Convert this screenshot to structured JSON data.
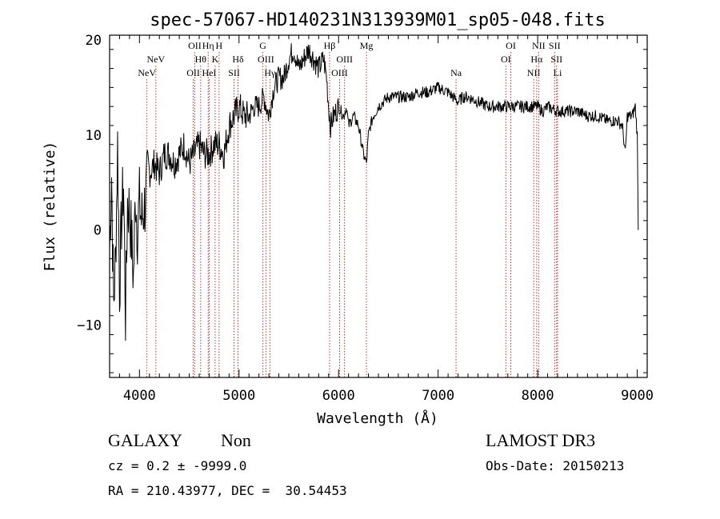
{
  "chart_data": {
    "type": "line",
    "title": "spec-57067-HD140231N313939M01_sp05-048.fits",
    "xlabel": "Wavelength (Å)",
    "ylabel": "Flux (relative)",
    "xlim": [
      3700,
      9100
    ],
    "ylim": [
      -15.5,
      20.5
    ],
    "xticks": [
      4000,
      5000,
      6000,
      7000,
      8000,
      9000
    ],
    "yticks": [
      -10,
      0,
      10,
      20
    ],
    "grid": false,
    "series": [
      {
        "x": [
          3700,
          3720,
          3740,
          3760,
          3780,
          3800,
          3820,
          3840,
          3860,
          3880,
          3900,
          3920,
          3940,
          3960,
          3980,
          4000,
          4020,
          4040,
          4060,
          4080,
          4100,
          4150,
          4200,
          4250,
          4300,
          4350,
          4400,
          4450,
          4500,
          4550,
          4600,
          4650,
          4700,
          4750,
          4800,
          4850,
          4900,
          4950,
          5000,
          5050,
          5100,
          5150,
          5200,
          5250,
          5300,
          5350,
          5400,
          5450,
          5500,
          5550,
          5600,
          5650,
          5700,
          5750,
          5800,
          5850,
          5880,
          5900,
          5920,
          5950,
          6000,
          6050,
          6080,
          6100,
          6150,
          6200,
          6250,
          6280,
          6300,
          6320,
          6350,
          6400,
          6450,
          6500,
          6550,
          6600,
          6700,
          6800,
          6900,
          7000,
          7100,
          7150,
          7200,
          7250,
          7300,
          7400,
          7500,
          7600,
          7700,
          7800,
          7900,
          8000,
          8050,
          8100,
          8200,
          8300,
          8400,
          8500,
          8600,
          8700,
          8800,
          8850,
          8880,
          8900,
          8950,
          8980,
          9000,
          9010
        ],
        "values": [
          -2,
          6,
          -8,
          -3,
          9,
          -6,
          1,
          5,
          -9,
          3,
          2,
          -1,
          -5,
          4,
          0,
          3,
          1,
          2,
          3,
          5,
          6,
          7,
          6,
          8,
          8,
          7,
          8,
          9,
          7,
          8,
          9,
          8,
          8,
          9,
          9,
          8,
          11,
          12,
          13,
          12,
          12,
          13,
          13,
          14,
          12,
          15,
          16,
          16,
          18,
          19,
          17,
          18,
          19,
          18,
          17,
          18,
          16,
          13,
          11,
          12,
          13,
          12,
          13,
          11,
          12,
          11,
          8,
          7,
          10,
          11,
          12,
          13,
          13.5,
          14,
          14,
          14,
          14,
          14.5,
          14.5,
          15,
          14.5,
          14,
          13.5,
          14,
          14,
          13.5,
          13,
          13,
          13,
          13,
          13,
          13,
          12.5,
          13,
          12.5,
          12.5,
          12.5,
          12,
          12,
          11.5,
          11.5,
          11,
          8,
          12,
          12,
          13,
          10,
          0
        ]
      }
    ],
    "line_markers": [
      {
        "name": "NeV",
        "wavelength": 4075,
        "row": 3
      },
      {
        "name": "NeV",
        "wavelength": 4165,
        "row": 2
      },
      {
        "name": "OII",
        "wavelength": 4540,
        "row": 3
      },
      {
        "name": "OII",
        "wavelength": 4555,
        "row": 1
      },
      {
        "name": "Hθ",
        "wavelength": 4615,
        "row": 2
      },
      {
        "name": "Hη",
        "wavelength": 4690,
        "row": 1
      },
      {
        "name": "HeI",
        "wavelength": 4700,
        "row": 3
      },
      {
        "name": "K",
        "wavelength": 4760,
        "row": 2
      },
      {
        "name": "H",
        "wavelength": 4800,
        "row": 1
      },
      {
        "name": "SII",
        "wavelength": 4950,
        "row": 3
      },
      {
        "name": "Hδ",
        "wavelength": 4990,
        "row": 2
      },
      {
        "name": "G",
        "wavelength": 5240,
        "row": 1
      },
      {
        "name": "OIII",
        "wavelength": 5270,
        "row": 2
      },
      {
        "name": "Hγ",
        "wavelength": 5310,
        "row": 3
      },
      {
        "name": "Hβ",
        "wavelength": 5910,
        "row": 1
      },
      {
        "name": "OIII",
        "wavelength": 6010,
        "row": 3
      },
      {
        "name": "OIII",
        "wavelength": 6060,
        "row": 2
      },
      {
        "name": "Mg",
        "wavelength": 6280,
        "row": 1
      },
      {
        "name": "Na",
        "wavelength": 7180,
        "row": 3
      },
      {
        "name": "OI",
        "wavelength": 7680,
        "row": 2
      },
      {
        "name": "OI",
        "wavelength": 7730,
        "row": 1
      },
      {
        "name": "NII",
        "wavelength": 7960,
        "row": 3
      },
      {
        "name": "Hα",
        "wavelength": 7990,
        "row": 2
      },
      {
        "name": "NII",
        "wavelength": 8010,
        "row": 1
      },
      {
        "name": "SII",
        "wavelength": 8170,
        "row": 1
      },
      {
        "name": "SII",
        "wavelength": 8190,
        "row": 2
      },
      {
        "name": "Li",
        "wavelength": 8200,
        "row": 3
      }
    ],
    "colors": {
      "spectrum": "#000000",
      "marker_line": "#b02020",
      "axes": "#000000"
    }
  },
  "info": {
    "object_class": "GALAXY",
    "subclass": "Non",
    "survey": "LAMOST DR3",
    "cz": "cz = 0.2 ± -9999.0",
    "obs_date": "Obs-Date: 20150213",
    "coords": "RA = 210.43977, DEC =  30.54453"
  }
}
